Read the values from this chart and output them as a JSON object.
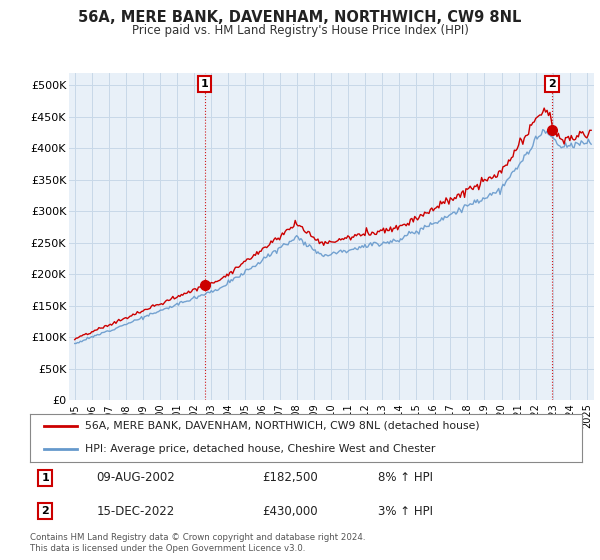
{
  "title": "56A, MERE BANK, DAVENHAM, NORTHWICH, CW9 8NL",
  "subtitle": "Price paid vs. HM Land Registry's House Price Index (HPI)",
  "background_color": "#ffffff",
  "chart_bg_color": "#e8f0f8",
  "grid_color": "#c8d8e8",
  "sale1": {
    "date": "2002-08-09",
    "price": 182500,
    "label": "1",
    "pct": "8% ↑ HPI",
    "date_str": "09-AUG-2002"
  },
  "sale2": {
    "date": "2022-12-15",
    "price": 430000,
    "label": "2",
    "pct": "3% ↑ HPI",
    "date_str": "15-DEC-2022"
  },
  "legend_line1": "56A, MERE BANK, DAVENHAM, NORTHWICH, CW9 8NL (detached house)",
  "legend_line2": "HPI: Average price, detached house, Cheshire West and Chester",
  "footer": "Contains HM Land Registry data © Crown copyright and database right 2024.\nThis data is licensed under the Open Government Licence v3.0.",
  "sale_color": "#cc0000",
  "hpi_color": "#6699cc",
  "ytick_vals": [
    0,
    50000,
    100000,
    150000,
    200000,
    250000,
    300000,
    350000,
    400000,
    450000,
    500000
  ],
  "ytick_labels": [
    "£0",
    "£50K",
    "£100K",
    "£150K",
    "£200K",
    "£250K",
    "£300K",
    "£350K",
    "£400K",
    "£450K",
    "£500K"
  ],
  "ylim": [
    0,
    520000
  ],
  "xtick_years": [
    1995,
    1996,
    1997,
    1998,
    1999,
    2000,
    2001,
    2002,
    2003,
    2004,
    2005,
    2006,
    2007,
    2008,
    2009,
    2010,
    2011,
    2012,
    2013,
    2014,
    2015,
    2016,
    2017,
    2018,
    2019,
    2020,
    2021,
    2022,
    2023,
    2024,
    2025
  ],
  "sale1_price": 182500,
  "sale2_price": 430000,
  "hpi_seed": 12
}
